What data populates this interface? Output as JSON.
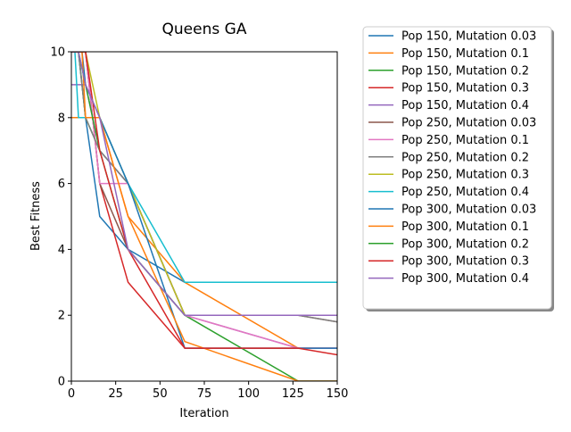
{
  "chart_data": {
    "type": "line",
    "title": "Queens GA",
    "xlabel": "Iteration",
    "ylabel": "Best Fitness",
    "xlim": [
      0,
      150
    ],
    "ylim": [
      0,
      10
    ],
    "xticks": [
      "0",
      "25",
      "50",
      "75",
      "100",
      "125",
      "150"
    ],
    "yticks": [
      "0",
      "2",
      "4",
      "6",
      "8",
      "10"
    ],
    "grid": false,
    "legend_position": "outside-right",
    "series": [
      {
        "name": "Pop 150, Mutation 0.03",
        "color": "#1f77b4",
        "x": [
          0,
          4,
          8,
          16,
          32,
          64,
          150
        ],
        "y": [
          10,
          10,
          8,
          5,
          4,
          3,
          3
        ]
      },
      {
        "name": "Pop 150, Mutation 0.1",
        "color": "#ff7f0e",
        "x": [
          0,
          4,
          8,
          16,
          32,
          64,
          128,
          150
        ],
        "y": [
          8,
          8,
          8,
          8,
          5,
          3,
          1,
          1
        ]
      },
      {
        "name": "Pop 150, Mutation 0.2",
        "color": "#2ca02c",
        "x": [
          0,
          4,
          8,
          16,
          32,
          64,
          128,
          150
        ],
        "y": [
          10,
          10,
          8,
          7,
          6,
          2,
          0,
          0
        ]
      },
      {
        "name": "Pop 150, Mutation 0.3",
        "color": "#d62728",
        "x": [
          0,
          4,
          8,
          16,
          32,
          64,
          150
        ],
        "y": [
          10,
          10,
          10,
          6,
          3,
          1,
          1
        ]
      },
      {
        "name": "Pop 150, Mutation 0.4",
        "color": "#9467bd",
        "x": [
          0,
          8,
          16,
          32,
          64,
          128,
          150
        ],
        "y": [
          9,
          9,
          7,
          6,
          2,
          1,
          1
        ]
      },
      {
        "name": "Pop 250, Mutation 0.03",
        "color": "#8c564b",
        "x": [
          0,
          4,
          8,
          16,
          32,
          64,
          128,
          150
        ],
        "y": [
          10,
          10,
          10,
          6,
          4,
          2,
          2,
          1.8
        ]
      },
      {
        "name": "Pop 250, Mutation 0.1",
        "color": "#e377c2",
        "x": [
          0,
          4,
          8,
          16,
          32,
          64,
          128,
          150
        ],
        "y": [
          10,
          10,
          10,
          6,
          6,
          2,
          1,
          1
        ]
      },
      {
        "name": "Pop 250, Mutation 0.2",
        "color": "#7f7f7f",
        "x": [
          0,
          4,
          8,
          16,
          32,
          64,
          128,
          150
        ],
        "y": [
          10,
          10,
          8,
          7,
          6,
          2,
          2,
          1.8
        ]
      },
      {
        "name": "Pop 250, Mutation 0.3",
        "color": "#bcbd22",
        "x": [
          0,
          4,
          8,
          16,
          32,
          64,
          150
        ],
        "y": [
          10,
          10,
          10,
          8,
          6,
          2,
          2
        ]
      },
      {
        "name": "Pop 250, Mutation 0.4",
        "color": "#17becf",
        "x": [
          0,
          2,
          4,
          8,
          16,
          32,
          64,
          150
        ],
        "y": [
          10,
          10,
          8,
          8,
          8,
          6,
          3,
          3
        ]
      },
      {
        "name": "Pop 300, Mutation 0.03",
        "color": "#1f77b4",
        "x": [
          0,
          6,
          8,
          16,
          32,
          64,
          150
        ],
        "y": [
          10,
          10,
          9,
          8,
          6,
          1,
          1
        ]
      },
      {
        "name": "Pop 300, Mutation 0.1",
        "color": "#ff7f0e",
        "x": [
          0,
          6,
          8,
          16,
          32,
          64,
          128,
          150
        ],
        "y": [
          10,
          10,
          8,
          8,
          5,
          1.2,
          0,
          0
        ]
      },
      {
        "name": "Pop 300, Mutation 0.2",
        "color": "#2ca02c",
        "x": [
          0,
          4,
          8,
          16,
          32,
          64,
          150
        ],
        "y": [
          10,
          10,
          9,
          7,
          4,
          2,
          2
        ]
      },
      {
        "name": "Pop 300, Mutation 0.3",
        "color": "#d62728",
        "x": [
          0,
          4,
          8,
          16,
          32,
          64,
          128,
          150
        ],
        "y": [
          10,
          10,
          10,
          7,
          4,
          1,
          1,
          0.8
        ]
      },
      {
        "name": "Pop 300, Mutation 0.4",
        "color": "#9467bd",
        "x": [
          0,
          4,
          8,
          16,
          32,
          64,
          150
        ],
        "y": [
          10,
          10,
          9,
          8,
          4,
          2,
          2
        ]
      }
    ]
  }
}
